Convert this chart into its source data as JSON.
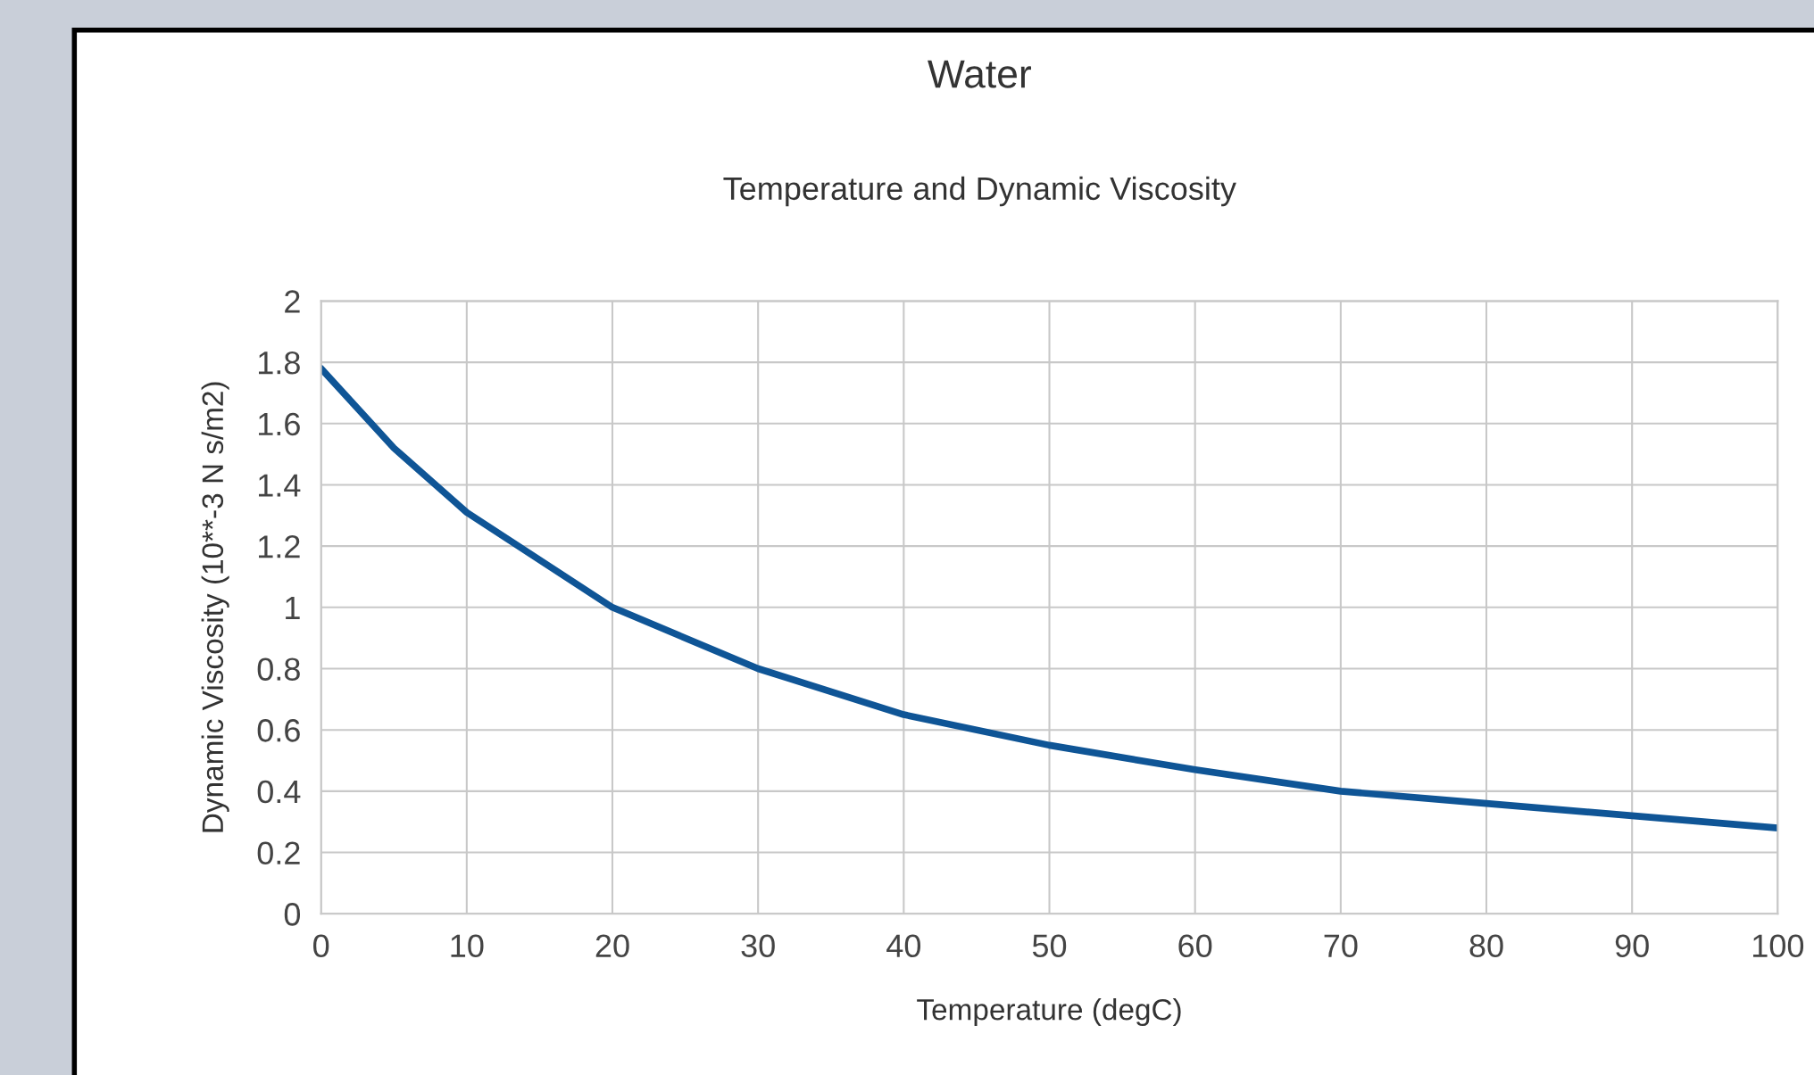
{
  "chart_data": {
    "type": "line",
    "title": "Water",
    "subtitle": "Temperature and Dynamic Viscosity",
    "xlabel": "Temperature (degC)",
    "ylabel": "Dynamic Viscosity (10**-3 N s/m2)",
    "x": [
      0,
      5,
      10,
      20,
      30,
      40,
      50,
      60,
      70,
      80,
      90,
      100
    ],
    "series": [
      {
        "color": "#0f5596",
        "values": [
          1.78,
          1.52,
          1.31,
          1.0,
          0.8,
          0.65,
          0.55,
          0.47,
          0.4,
          0.36,
          0.32,
          0.28
        ]
      }
    ],
    "xlim": [
      0,
      100
    ],
    "xticks": [
      0,
      10,
      20,
      30,
      40,
      50,
      60,
      70,
      80,
      90,
      100
    ],
    "ylim": [
      0,
      2
    ],
    "yticks": [
      0,
      0.2,
      0.4,
      0.6,
      0.8,
      1,
      1.2,
      1.4,
      1.6,
      1.8,
      2
    ],
    "grid": true,
    "legend": false,
    "marker": "none",
    "line_style": "solid"
  }
}
